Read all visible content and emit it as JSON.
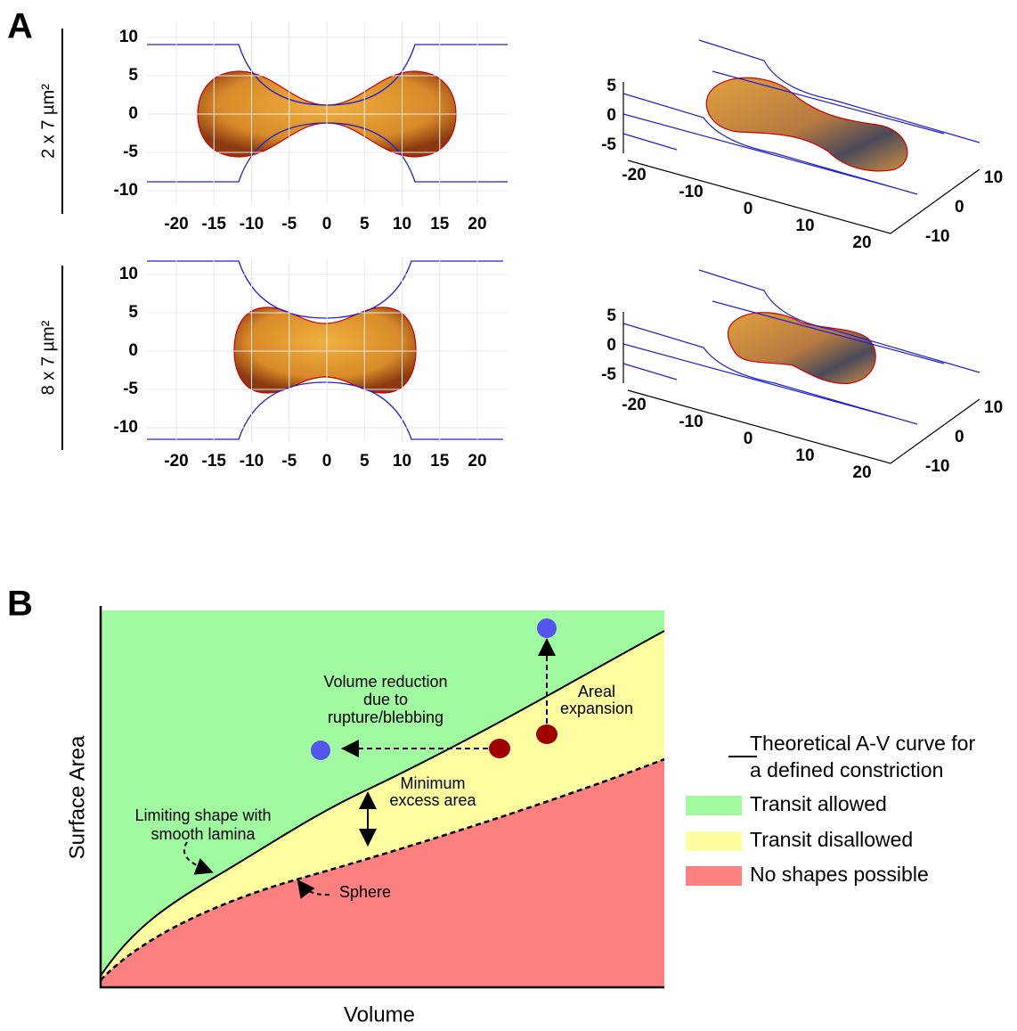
{
  "panel_a": {
    "label": "A",
    "rows": [
      {
        "label": "2 x 7 µm²",
        "plot_2d": {
          "yticks": [
            10,
            5,
            0,
            -5,
            -10
          ],
          "xticks": [
            -20,
            -15,
            -10,
            -5,
            0,
            5,
            10,
            15,
            20
          ]
        },
        "plot_3d": {
          "zticks": [
            5,
            0,
            -5
          ],
          "xticks": [
            -20,
            -10,
            0,
            10,
            20
          ],
          "yticks": [
            10,
            0,
            -10
          ]
        }
      },
      {
        "label": "8 x 7 µm²",
        "plot_2d": {
          "yticks": [
            10,
            5,
            0,
            -5,
            -10
          ],
          "xticks": [
            -20,
            -15,
            -10,
            -5,
            0,
            5,
            10,
            15,
            20
          ]
        },
        "plot_3d": {
          "zticks": [
            5,
            0,
            -5
          ],
          "xticks": [
            -20,
            -10,
            0,
            10,
            20
          ],
          "yticks": [
            10,
            0,
            -10
          ]
        }
      }
    ]
  },
  "panel_b": {
    "label": "B",
    "y_label": "Surface Area",
    "x_label": "Volume",
    "annotations": [
      {
        "lines": [
          "Volume reduction",
          "due to",
          "rupture/blebbing"
        ]
      },
      {
        "lines": [
          "Areal",
          "expansion"
        ]
      },
      {
        "lines": [
          "Minimum",
          "excess area"
        ]
      },
      {
        "lines": [
          "Limiting shape with",
          "smooth lamina"
        ]
      },
      {
        "lines": [
          "Sphere"
        ]
      }
    ],
    "legend": [
      {
        "lines": [
          "Theoretical A-V curve for",
          "a defined constriction"
        ]
      },
      {
        "lines": [
          "Transit allowed"
        ]
      },
      {
        "lines": [
          "Transit disallowed"
        ]
      },
      {
        "lines": [
          "No shapes possible"
        ]
      }
    ]
  }
}
